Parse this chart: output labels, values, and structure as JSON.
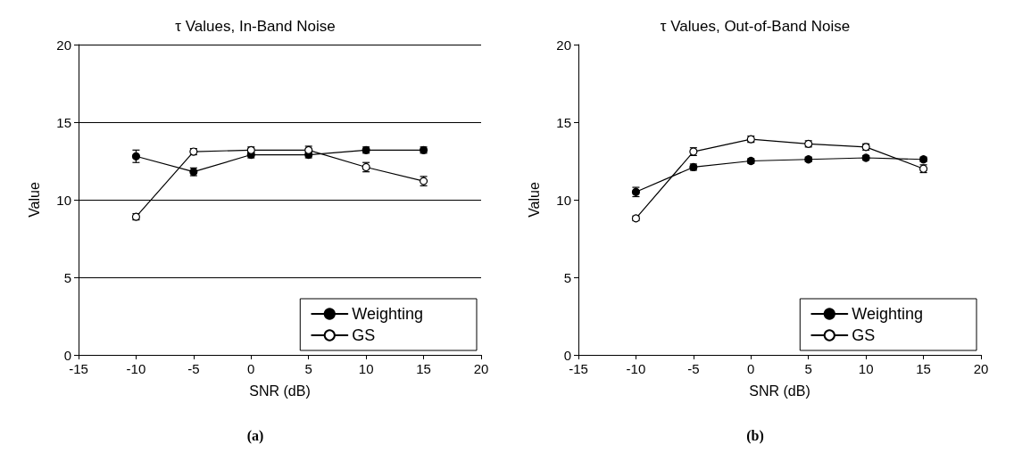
{
  "chart_data": [
    {
      "type": "line",
      "title": "τ Values, In-Band Noise",
      "xlabel": "SNR (dB)",
      "ylabel": "Value",
      "x": [
        -10,
        -5,
        0,
        5,
        10,
        15
      ],
      "series": [
        {
          "name": "Weighting",
          "color": "#000000",
          "values": [
            12.8,
            11.8,
            12.9,
            12.9,
            13.2,
            13.2
          ],
          "errors": [
            0.4,
            0.25,
            0.2,
            0.2,
            0.2,
            0.2
          ]
        },
        {
          "name": "GS",
          "color": "#ffffff",
          "values": [
            8.9,
            13.1,
            13.2,
            13.2,
            12.1,
            11.2
          ],
          "errors": [
            0.2,
            0.2,
            0.2,
            0.25,
            0.3,
            0.3
          ]
        }
      ],
      "xlim": [
        -15,
        20
      ],
      "xticks": [
        -15,
        -10,
        -5,
        0,
        5,
        10,
        15,
        20
      ],
      "ylim": [
        0,
        20
      ],
      "yticks": [
        0,
        5,
        10,
        15,
        20
      ],
      "grid": "y",
      "legend": "bottom right",
      "marker": "circle",
      "line_style": "solid",
      "annotations": [
        "(a)"
      ]
    },
    {
      "type": "line",
      "title": "τ Values, Out-of-Band Noise",
      "xlabel": "SNR (dB)",
      "ylabel": "Value",
      "x": [
        -10,
        -5,
        0,
        5,
        10,
        15
      ],
      "series": [
        {
          "name": "Weighting",
          "color": "#000000",
          "values": [
            10.5,
            12.1,
            12.5,
            12.6,
            12.7,
            12.6
          ],
          "errors": [
            0.3,
            0.2,
            0.15,
            0.15,
            0.15,
            0.15
          ]
        },
        {
          "name": "GS",
          "color": "#ffffff",
          "values": [
            8.8,
            13.1,
            13.9,
            13.6,
            13.4,
            12.0
          ],
          "errors": [
            0.15,
            0.25,
            0.2,
            0.2,
            0.2,
            0.25
          ]
        }
      ],
      "xlim": [
        -15,
        20
      ],
      "xticks": [
        -15,
        -10,
        -5,
        0,
        5,
        10,
        15,
        20
      ],
      "ylim": [
        0,
        20
      ],
      "yticks": [
        0,
        5,
        10,
        15,
        20
      ],
      "grid": false,
      "legend": "bottom right",
      "marker": "circle",
      "line_style": "solid",
      "annotations": [
        "(b)"
      ]
    }
  ]
}
